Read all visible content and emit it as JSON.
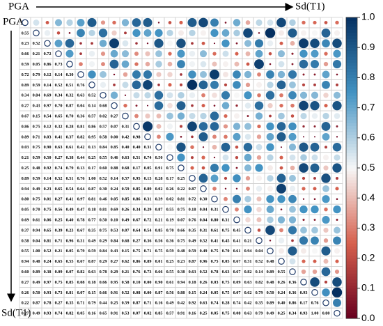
{
  "chart_data": {
    "type": "corrplot",
    "top_axis": {
      "start": "PGA",
      "end": "Sd(T1)"
    },
    "left_axis": {
      "start": "PGA",
      "end": "Sd(T1)"
    },
    "colorscale": [
      "#67001f",
      "#d6604d",
      "#f7f7f7",
      "#4393c3",
      "#053061"
    ],
    "diagonal_color": "#1f3a68",
    "colorbar_lim": [
      0,
      1
    ],
    "colorbar_ticks": [
      {
        "value": 0,
        "label": "0.0"
      },
      {
        "value": 0.1,
        "label": "0.1"
      },
      {
        "value": 0.2,
        "label": "0.2"
      },
      {
        "value": 0.3,
        "label": "0.3"
      },
      {
        "value": 0.4,
        "label": "0.4"
      },
      {
        "value": 0.5,
        "label": "0.5"
      },
      {
        "value": 0.6,
        "label": "0.6"
      },
      {
        "value": 0.7,
        "label": "0.7"
      },
      {
        "value": 0.8,
        "label": "0.8"
      },
      {
        "value": 0.9,
        "label": "0.9"
      },
      {
        "value": 1,
        "label": "1.0"
      }
    ],
    "values": [
      [],
      [
        0.55
      ],
      [
        0.23,
        0.52
      ],
      [
        0.66,
        0.21,
        0.72
      ],
      [
        0.59,
        0.05,
        0.86,
        0.73
      ],
      [
        0.72,
        0.79,
        0.12,
        0.14,
        0.3
      ],
      [
        0.89,
        0.59,
        0.14,
        0.52,
        0.51,
        0.76
      ],
      [
        0.34,
        0.84,
        0.69,
        0.34,
        0.32,
        0.63,
        0.52
      ],
      [
        0.27,
        0.43,
        0.97,
        0.7,
        0.87,
        0.04,
        0.14,
        0.68
      ],
      [
        0.67,
        0.15,
        0.54,
        0.65,
        0.7,
        0.36,
        0.57,
        0.02,
        0.27
      ],
      [
        0.86,
        0.75,
        0.12,
        0.32,
        0.28,
        0.81,
        0.86,
        0.57,
        0.07,
        0.31
      ],
      [
        0.89,
        0.71,
        0.03,
        0.41,
        0.37,
        0.82,
        0.95,
        0.58,
        0.0,
        0.42,
        0.98
      ],
      [
        0.03,
        0.75,
        0.9,
        0.63,
        0.61,
        0.42,
        0.13,
        0.84,
        0.85,
        0.4,
        0.4,
        0.31
      ],
      [
        0.21,
        0.59,
        0.5,
        0.27,
        0.38,
        0.44,
        0.25,
        0.55,
        0.46,
        0.63,
        0.51,
        0.74,
        0.5
      ],
      [
        0.25,
        0.48,
        0.92,
        0.74,
        0.79,
        0.13,
        0.17,
        0.6,
        0.88,
        0.68,
        0.17,
        0.05,
        0.91,
        0.75
      ],
      [
        0.89,
        0.59,
        0.14,
        0.52,
        0.51,
        0.76,
        1.0,
        0.52,
        0.14,
        0.57,
        0.95,
        0.13,
        0.28,
        0.17,
        0.25
      ],
      [
        0.94,
        0.49,
        0.23,
        0.65,
        0.54,
        0.64,
        0.87,
        0.3,
        0.24,
        0.59,
        0.85,
        0.89,
        0.02,
        0.26,
        0.22,
        0.87
      ],
      [
        0.8,
        0.75,
        0.01,
        0.27,
        0.41,
        0.97,
        0.81,
        0.46,
        0.05,
        0.85,
        0.86,
        0.31,
        0.39,
        0.02,
        0.81,
        0.72,
        0.3
      ],
      [
        0.05,
        0.7,
        0.75,
        0.56,
        0.49,
        0.47,
        0.18,
        0.81,
        0.69,
        0.26,
        0.34,
        0.29,
        0.87,
        0.55,
        0.75,
        0.18,
        0.04,
        0.31
      ],
      [
        0.69,
        0.61,
        0.06,
        0.25,
        0.4,
        0.78,
        0.77,
        0.5,
        0.1,
        0.49,
        0.67,
        0.72,
        0.21,
        0.19,
        0.07,
        0.76,
        0.04,
        0.8,
        0.31
      ],
      [
        0.37,
        0.94,
        0.65,
        0.39,
        0.23,
        0.67,
        0.35,
        0.75,
        0.53,
        0.07,
        0.64,
        0.54,
        0.85,
        0.7,
        0.66,
        0.35,
        0.31,
        0.61,
        0.75,
        0.45
      ],
      [
        0.58,
        0.04,
        0.81,
        0.71,
        0.96,
        0.31,
        0.49,
        0.29,
        0.84,
        0.68,
        0.27,
        0.36,
        0.56,
        0.36,
        0.75,
        0.49,
        0.52,
        0.41,
        0.45,
        0.41,
        0.21
      ],
      [
        0.55,
        1.0,
        0.52,
        0.21,
        0.05,
        0.79,
        0.59,
        0.84,
        0.43,
        0.15,
        0.75,
        0.71,
        0.75,
        0.59,
        0.48,
        0.59,
        0.49,
        0.75,
        0.7,
        0.61,
        0.94,
        0.04
      ],
      [
        0.94,
        0.48,
        0.24,
        0.65,
        0.55,
        0.67,
        0.87,
        0.29,
        0.27,
        0.62,
        0.86,
        0.89,
        0.01,
        0.25,
        0.23,
        0.87,
        0.96,
        0.75,
        0.05,
        0.67,
        0.31,
        0.52,
        0.48
      ],
      [
        0.6,
        0.89,
        0.38,
        0.09,
        0.07,
        0.82,
        0.63,
        0.78,
        0.29,
        0.21,
        0.76,
        0.73,
        0.66,
        0.55,
        0.38,
        0.63,
        0.52,
        0.78,
        0.63,
        0.67,
        0.82,
        0.14,
        0.89,
        0.55
      ],
      [
        0.27,
        0.49,
        0.97,
        0.75,
        0.85,
        0.08,
        0.18,
        0.66,
        0.95,
        0.58,
        0.1,
        0.0,
        0.9,
        0.61,
        0.94,
        0.18,
        0.26,
        0.03,
        0.75,
        0.09,
        0.63,
        0.82,
        0.48,
        0.26,
        0.36
      ],
      [
        0.26,
        0.5,
        0.93,
        0.73,
        0.81,
        0.07,
        0.15,
        0.66,
        0.91,
        0.52,
        0.08,
        0.0,
        0.87,
        0.56,
        0.88,
        0.15,
        0.24,
        0.05,
        0.75,
        0.07,
        0.62,
        0.79,
        0.5,
        0.24,
        0.36,
        0.93
      ],
      [
        0.22,
        0.87,
        0.78,
        0.27,
        0.35,
        0.71,
        0.79,
        0.44,
        0.25,
        0.59,
        0.87,
        0.71,
        0.16,
        0.49,
        0.42,
        0.92,
        0.63,
        0.74,
        0.28,
        0.74,
        0.42,
        0.35,
        0.89,
        0.4,
        0.86,
        0.17,
        0.76
      ],
      [
        0.27,
        0.49,
        0.93,
        0.74,
        0.82,
        0.05,
        0.16,
        0.65,
        0.91,
        0.53,
        0.07,
        0.02,
        0.85,
        0.57,
        0.91,
        0.16,
        0.25,
        0.05,
        0.75,
        0.08,
        0.63,
        0.79,
        0.49,
        0.25,
        0.34,
        0.93,
        1.0,
        0.8
      ]
    ],
    "value_labels": [
      [],
      [
        "0.55"
      ],
      [
        "0.23",
        "0.52"
      ],
      [
        "0.66",
        "0.21",
        "0.72"
      ],
      [
        "0.59",
        "0.05",
        "0.86",
        "0.73"
      ],
      [
        "0.72",
        "0.79",
        "0.12",
        "0.14",
        "0.30"
      ],
      [
        "0.89",
        "0.59",
        "0.14",
        "0.52",
        "0.51",
        "0.76"
      ],
      [
        "0.34",
        "0.84",
        "0.69",
        "0.34",
        "0.32",
        "0.63",
        "0.52"
      ],
      [
        "0.27",
        "0.43",
        "0.97",
        "0.70",
        "0.87",
        "0.04",
        "0.14",
        "0.68"
      ],
      [
        "0.67",
        "0.15",
        "0.54",
        "0.65",
        "0.70",
        "0.36",
        "0.57",
        "0.02",
        "0.27"
      ],
      [
        "0.86",
        "0.75",
        "0.12",
        "0.32",
        "0.28",
        "0.81",
        "0.86",
        "0.57",
        "0.07",
        "0.31"
      ],
      [
        "0.89",
        "0.71",
        "0.03",
        "0.41",
        "0.37",
        "0.82",
        "0.95",
        "0.58",
        "0.00",
        "0.42",
        "0.98"
      ],
      [
        "0.03",
        "0.75",
        "0.90",
        "0.63",
        "0.61",
        "0.42",
        "0.13",
        "0.84",
        "0.85",
        "0.40",
        "0.40",
        "0.31"
      ],
      [
        "0.21",
        "0.59",
        "0.50",
        "0.27",
        "0.38",
        "0.44",
        "0.25",
        "0.55",
        "0.46",
        "0.63",
        "0.51",
        "0.74",
        "0.50"
      ],
      [
        "0.25",
        "0.48",
        "0.92",
        "0.74",
        "0.79",
        "0.13",
        "0.17",
        "0.60",
        "0.88",
        "0.68",
        "0.17",
        "0.05",
        "0.91",
        "0.75"
      ],
      [
        "0.89",
        "0.59",
        "0.14",
        "0.52",
        "0.51",
        "0.76",
        "1.00",
        "0.52",
        "0.14",
        "0.57",
        "0.95",
        "0.13",
        "0.28",
        "0.17",
        "0.25"
      ],
      [
        "0.94",
        "0.49",
        "0.23",
        "0.65",
        "0.54",
        "0.64",
        "0.87",
        "0.30",
        "0.24",
        "0.59",
        "0.85",
        "0.89",
        "0.02",
        "0.26",
        "0.22",
        "0.87"
      ],
      [
        "0.80",
        "0.75",
        "0.01",
        "0.27",
        "0.41",
        "0.97",
        "0.81",
        "0.46",
        "0.05",
        "0.85",
        "0.86",
        "0.31",
        "0.39",
        "0.02",
        "0.81",
        "0.72",
        "0.30"
      ],
      [
        "0.05",
        "0.70",
        "0.75",
        "0.56",
        "0.49",
        "0.47",
        "0.18",
        "0.81",
        "0.69",
        "0.26",
        "0.34",
        "0.29",
        "0.87",
        "0.55",
        "0.75",
        "0.18",
        "0.04",
        "0.31"
      ],
      [
        "0.69",
        "0.61",
        "0.06",
        "0.25",
        "0.40",
        "0.78",
        "0.77",
        "0.50",
        "0.10",
        "0.49",
        "0.67",
        "0.72",
        "0.21",
        "0.19",
        "0.07",
        "0.76",
        "0.04",
        "0.80",
        "0.31"
      ],
      [
        "0.37",
        "0.94",
        "0.65",
        "0.39",
        "0.23",
        "0.67",
        "0.35",
        "0.75",
        "0.53",
        "0.07",
        "0.64",
        "0.54",
        "0.85",
        "0.70",
        "0.66",
        "0.35",
        "0.31",
        "0.61",
        "0.75",
        "0.45"
      ],
      [
        "0.58",
        "0.04",
        "0.81",
        "0.71",
        "0.96",
        "0.31",
        "0.49",
        "0.29",
        "0.84",
        "0.68",
        "0.27",
        "0.36",
        "0.56",
        "0.36",
        "0.75",
        "0.49",
        "0.52",
        "0.41",
        "0.45",
        "0.41",
        "0.21"
      ],
      [
        "0.55",
        "1.00",
        "0.52",
        "0.21",
        "0.05",
        "0.79",
        "0.59",
        "0.84",
        "0.43",
        "0.15",
        "0.75",
        "0.71",
        "0.75",
        "0.59",
        "0.48",
        "0.59",
        "0.49",
        "0.75",
        "0.70",
        "0.61",
        "0.94",
        "0.04"
      ],
      [
        "0.94",
        "0.48",
        "0.24",
        "0.65",
        "0.55",
        "0.67",
        "0.87",
        "0.29",
        "0.27",
        "0.62",
        "0.86",
        "0.89",
        "0.01",
        "0.25",
        "0.23",
        "0.87",
        "0.96",
        "0.75",
        "0.05",
        "0.67",
        "0.31",
        "0.52",
        "0.48"
      ],
      [
        "0.60",
        "0.89",
        "0.38",
        "0.09",
        "0.07",
        "0.82",
        "0.63",
        "0.78",
        "0.29",
        "0.21",
        "0.76",
        "0.73",
        "0.66",
        "0.55",
        "0.38",
        "0.63",
        "0.52",
        "0.78",
        "0.63",
        "0.67",
        "0.82",
        "0.14",
        "0.89",
        "0.55"
      ],
      [
        "0.27",
        "0.49",
        "0.97",
        "0.75",
        "0.85",
        "0.08",
        "0.18",
        "0.66",
        "0.95",
        "0.58",
        "0.10",
        "0.00",
        "0.90",
        "0.61",
        "0.94",
        "0.18",
        "0.26",
        "0.03",
        "0.75",
        "0.09",
        "0.63",
        "0.82",
        "0.48",
        "0.26",
        "0.36"
      ],
      [
        "0.26",
        "0.50",
        "0.93",
        "0.73",
        "0.81",
        "0.07",
        "0.15",
        "0.66",
        "0.91",
        "0.52",
        "0.08",
        "0.00",
        "0.87",
        "0.56",
        "0.88",
        "0.15",
        "0.24",
        "0.05",
        "0.75",
        "0.07",
        "0.62",
        "0.79",
        "0.50",
        "0.24",
        "0.36",
        "0.93"
      ],
      [
        "0.22",
        "0.87",
        "0.78",
        "0.27",
        "0.35",
        "0.71",
        "0.79",
        "0.44",
        "0.25",
        "0.59",
        "0.87",
        "0.71",
        "0.16",
        "0.49",
        "0.42",
        "0.92",
        "0.63",
        "0.74",
        "0.28",
        "0.74",
        "0.42",
        "0.35",
        "0.89",
        "0.40",
        "0.86",
        "0.17",
        "0.76"
      ],
      [
        "0.27",
        "0.49",
        "0.93",
        "0.74",
        "0.82",
        "0.05",
        "0.16",
        "0.65",
        "0.91",
        "0.53",
        "0.07",
        "0.02",
        "0.85",
        "0.57",
        "0.91",
        "0.16",
        "0.25",
        "0.05",
        "0.75",
        "0.08",
        "0.63",
        "0.79",
        "0.49",
        "0.25",
        "0.34",
        "0.93",
        "1.00",
        "0.80"
      ]
    ]
  }
}
